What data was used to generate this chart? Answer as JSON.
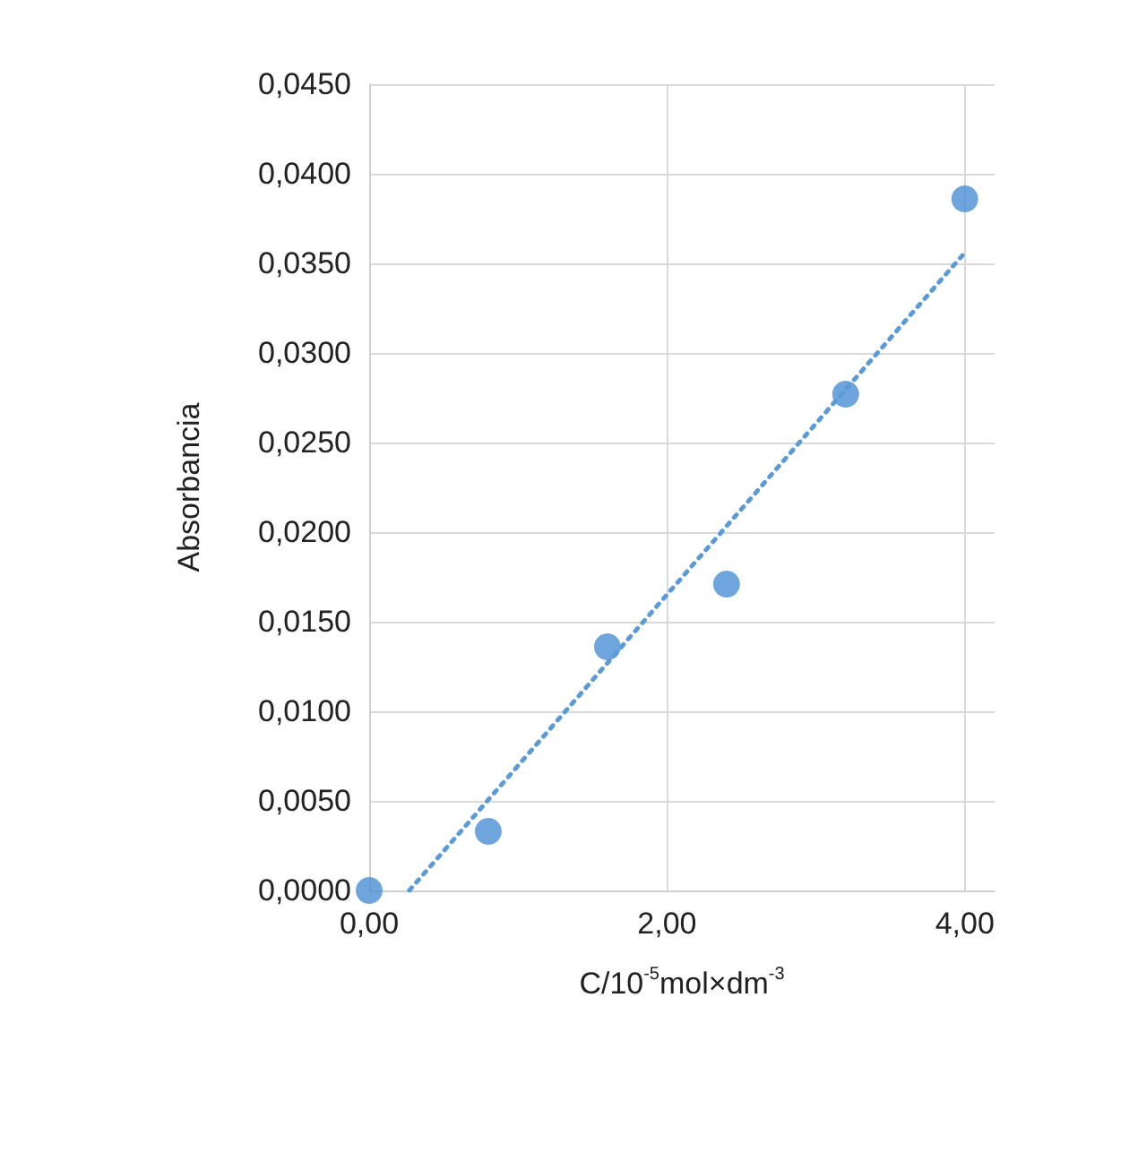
{
  "chart_data": {
    "type": "scatter",
    "xlabel": "C/10$^{-5}$mol×dm$^{-3}$",
    "ylabel": "Absorbancia",
    "x": [
      0,
      0.8,
      1.6,
      2.4,
      3.2,
      4.0
    ],
    "series": [
      {
        "color": "#4a8fd4",
        "marker": "circle",
        "values": [
          0,
          0.0033,
          0.0136,
          0.0171,
          0.0277,
          0.0386
        ]
      },
      {
        "type": "line",
        "color": "#5b9bd5",
        "marker": "none",
        "line_style": "dotted",
        "x": [
          0.27,
          4.0
        ],
        "values": [
          0,
          0.0356
        ]
      }
    ],
    "xlim": [
      0,
      4.2
    ],
    "xticks": [
      {
        "value": 0,
        "label": "0,00"
      },
      {
        "value": 2,
        "label": "2,00"
      },
      {
        "value": 4,
        "label": "4,00"
      }
    ],
    "ylim": [
      0,
      0.045
    ],
    "yticks": [
      {
        "value": 0,
        "label": "0,0000"
      },
      {
        "value": 0.005,
        "label": "0,0050"
      },
      {
        "value": 0.01,
        "label": "0,0100"
      },
      {
        "value": 0.015,
        "label": "0,0150"
      },
      {
        "value": 0.02,
        "label": "0,0200"
      },
      {
        "value": 0.025,
        "label": "0,0250"
      },
      {
        "value": 0.03,
        "label": "0,0300"
      },
      {
        "value": 0.035,
        "label": "0,0350"
      },
      {
        "value": 0.04,
        "label": "0,0400"
      },
      {
        "value": 0.045,
        "label": "0,0450"
      }
    ],
    "grid": true
  }
}
